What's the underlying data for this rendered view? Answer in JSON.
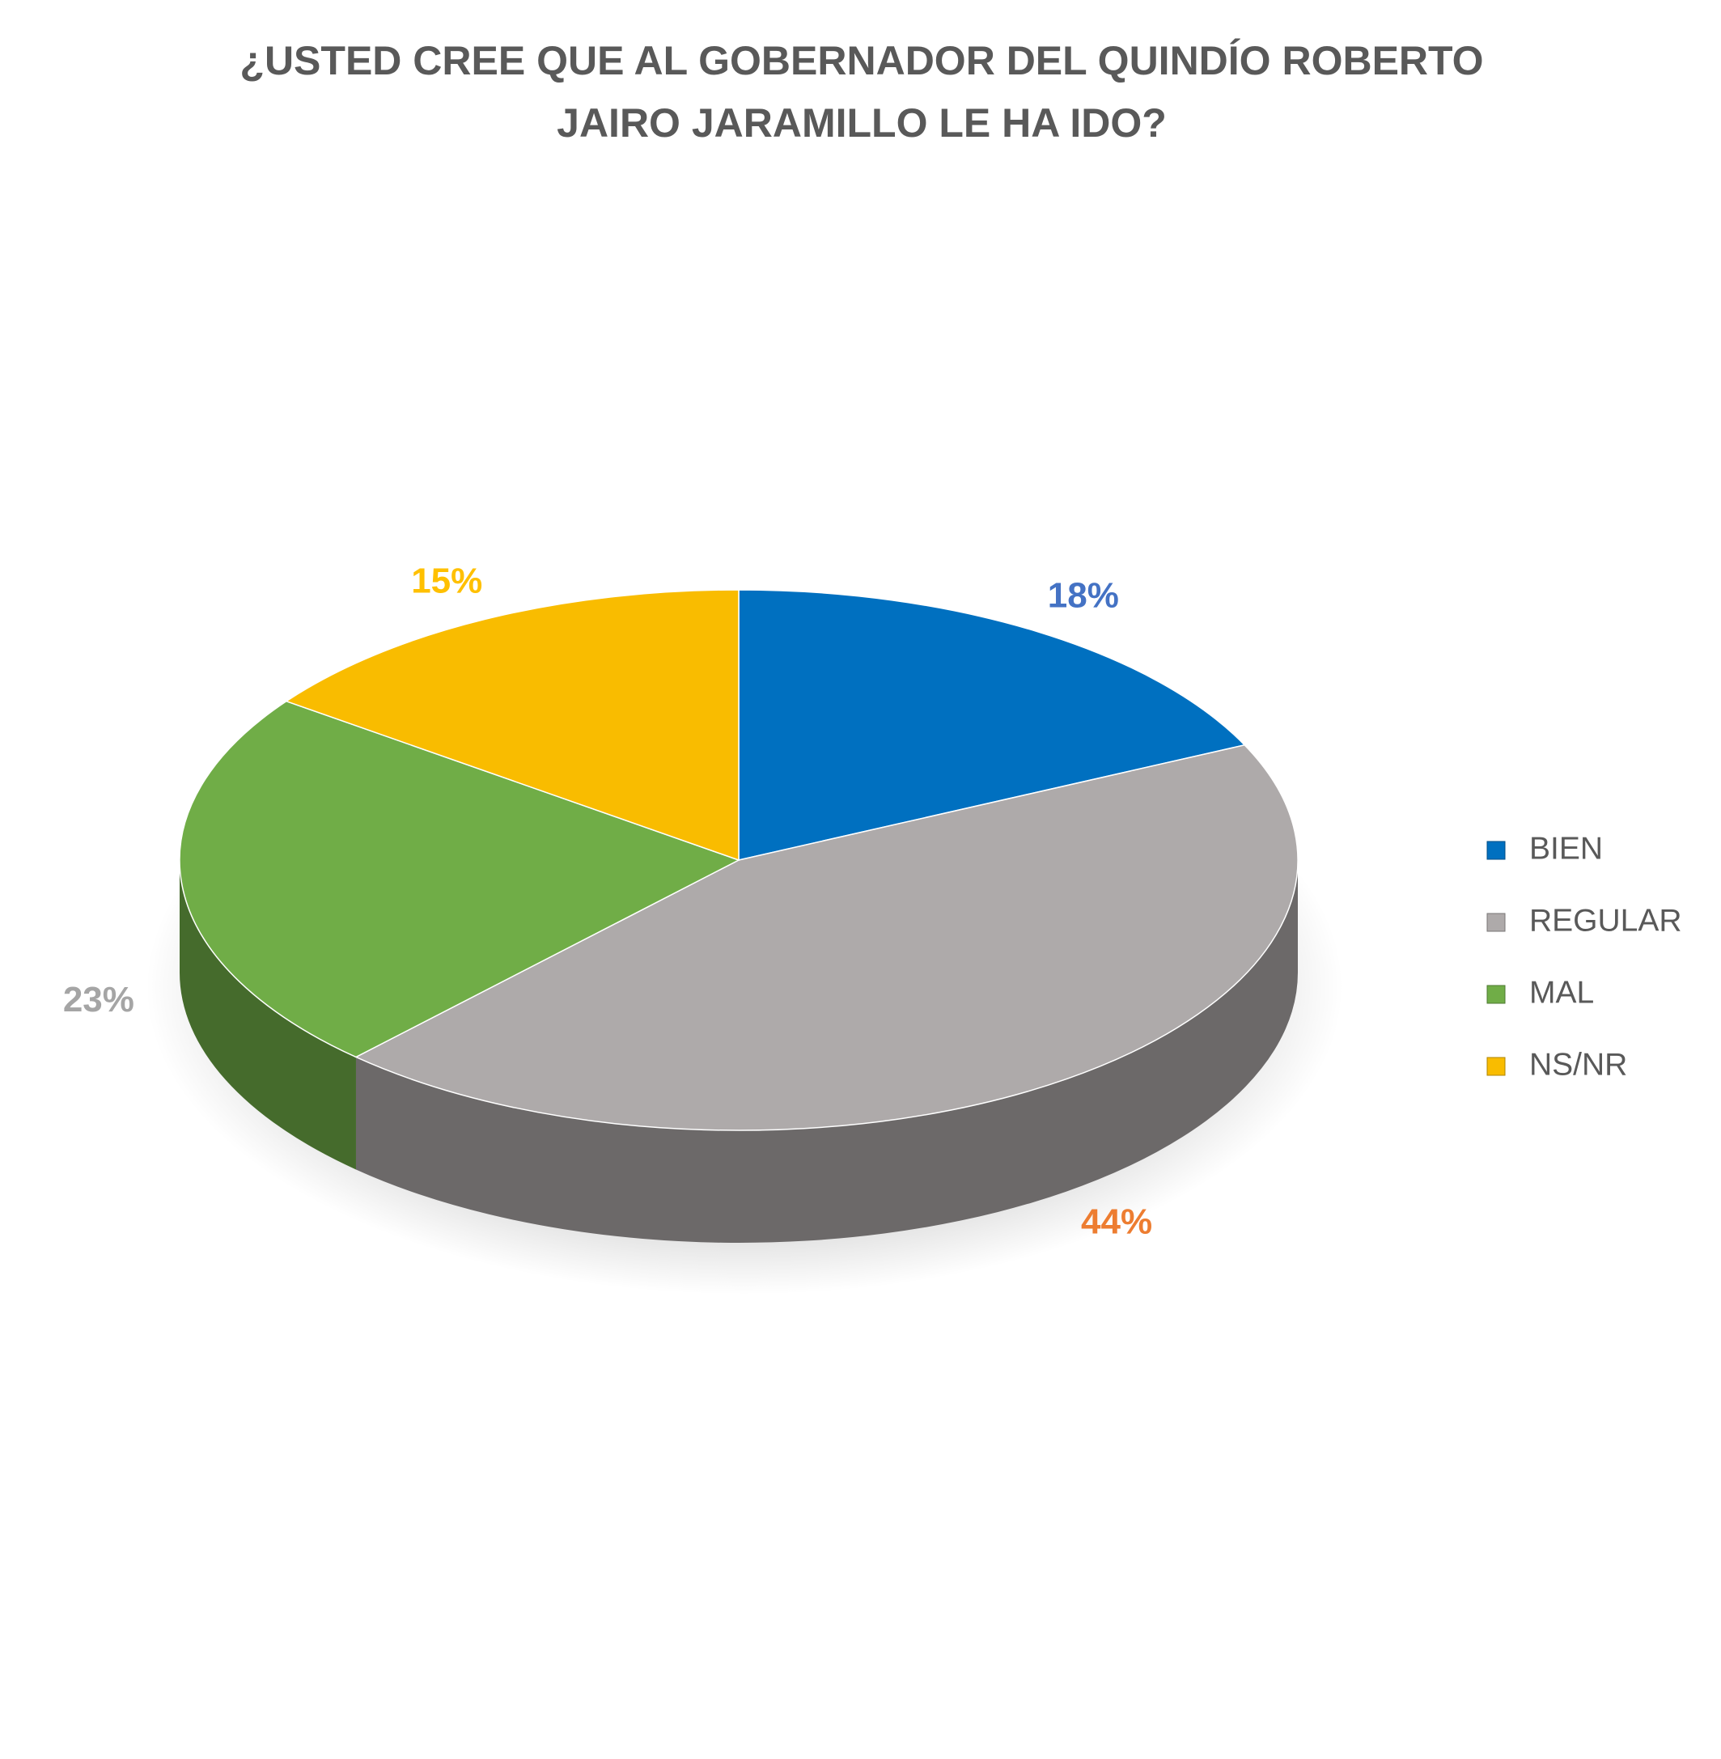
{
  "chart_data": {
    "type": "pie",
    "title": [
      "¿USTED CREE QUE AL GOBERNADOR DEL QUINDÍO ROBERTO",
      "JAIRO JARAMILLO LE HA IDO?"
    ],
    "categories": [
      "BIEN",
      "REGULAR",
      "MAL",
      "NS/NR"
    ],
    "values": [
      18,
      44,
      23,
      15
    ],
    "value_labels": [
      "18%",
      "44%",
      "23%",
      "15%"
    ],
    "colors": [
      "#0070c0",
      "#aeaaaa",
      "#70ad47",
      "#f9bc00"
    ],
    "label_colors": [
      "#4472c4",
      "#ed7d31",
      "#a5a5a5",
      "#ffc000"
    ],
    "legend": "right"
  }
}
